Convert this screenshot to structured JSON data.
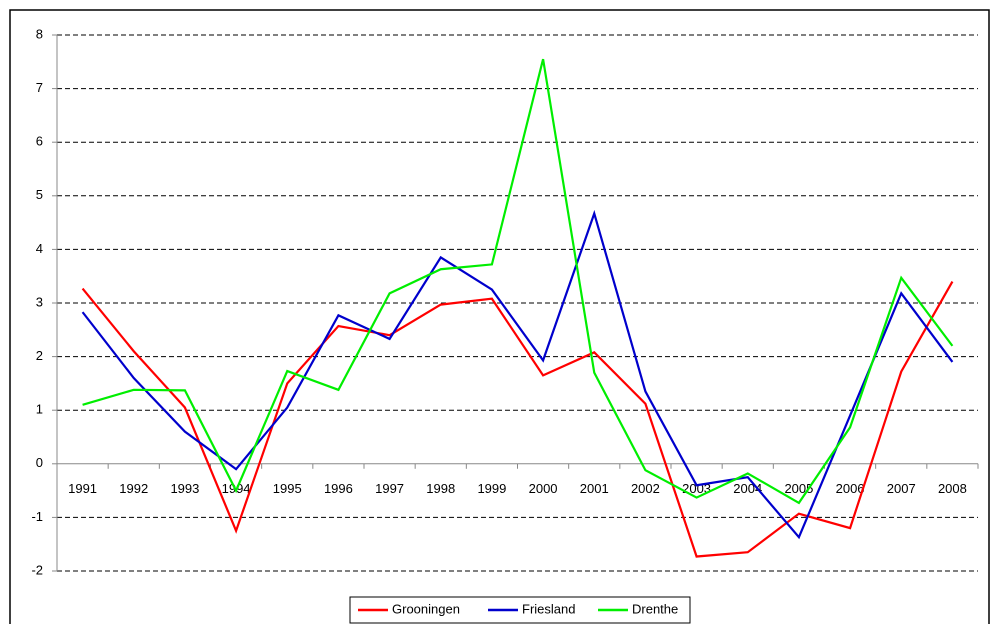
{
  "chart_data": {
    "type": "line",
    "categories": [
      "1991",
      "1992",
      "1993",
      "1994",
      "1995",
      "1996",
      "1997",
      "1998",
      "1999",
      "2000",
      "2001",
      "2002",
      "2003",
      "2004",
      "2005",
      "2006",
      "2007",
      "2008"
    ],
    "series": [
      {
        "name": "Grooningen",
        "color": "#ff0000",
        "values": [
          3.27,
          2.1,
          1.05,
          -1.25,
          1.5,
          2.57,
          2.4,
          2.97,
          3.08,
          1.65,
          2.08,
          1.12,
          -1.73,
          -1.65,
          -0.93,
          -1.2,
          1.72,
          3.4
        ]
      },
      {
        "name": "Friesland",
        "color": "#0000cc",
        "values": [
          2.83,
          1.6,
          0.6,
          -0.1,
          1.05,
          2.77,
          2.33,
          3.85,
          3.25,
          1.93,
          4.67,
          1.35,
          -0.4,
          -0.25,
          -1.37,
          0.9,
          3.18,
          1.9
        ]
      },
      {
        "name": "Drenthe",
        "color": "#00ee00",
        "values": [
          1.1,
          1.38,
          1.37,
          -0.5,
          1.73,
          1.38,
          3.18,
          3.63,
          3.72,
          7.55,
          1.7,
          -0.12,
          -0.63,
          -0.18,
          -0.73,
          0.68,
          3.47,
          2.2
        ]
      }
    ],
    "ylim": [
      -2,
      8
    ],
    "yticks": [
      -2,
      -1,
      0,
      1,
      2,
      3,
      4,
      5,
      6,
      7,
      8
    ],
    "grid": true,
    "legend": "bottom"
  }
}
